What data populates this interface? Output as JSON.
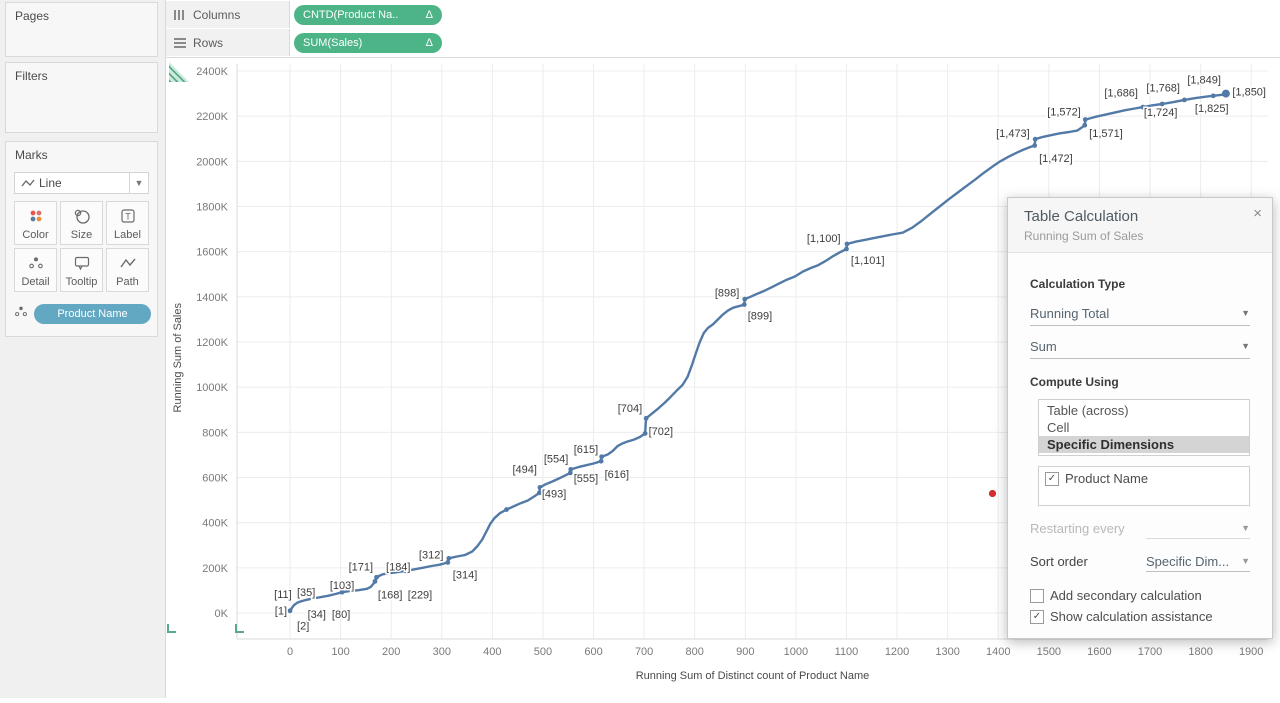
{
  "sidebar": {
    "pages_label": "Pages",
    "filters_label": "Filters",
    "marks_label": "Marks",
    "mark_type": "Line",
    "buttons": {
      "color": "Color",
      "size": "Size",
      "label": "Label",
      "detail": "Detail",
      "tooltip": "Tooltip",
      "path": "Path"
    },
    "detail_pill": "Product Name"
  },
  "shelves": {
    "columns_label": "Columns",
    "rows_label": "Rows",
    "columns_pill": "CNTD(Product Na..",
    "columns_pill_delta": "Δ",
    "rows_pill": "SUM(Sales)",
    "rows_pill_delta": "Δ"
  },
  "colors": {
    "pill_green": "#4db487",
    "pill_blue": "#62a8c2",
    "line": "#537aa6",
    "selection_bg": "#d4d4d4",
    "red_dot": "#d62f2f"
  },
  "chart_data": {
    "type": "line",
    "xlabel": "Running Sum of Distinct count of Product Name",
    "ylabel": "Running Sum of Sales",
    "xlim": [
      0,
      1900
    ],
    "ylim_thousands": [
      0,
      2400
    ],
    "grid": true,
    "x_ticks": [
      0,
      100,
      200,
      300,
      400,
      500,
      600,
      700,
      800,
      900,
      1000,
      1100,
      1200,
      1300,
      1400,
      1500,
      1600,
      1700,
      1800,
      1900
    ],
    "y_tick_values": [
      0,
      200,
      400,
      600,
      800,
      1000,
      1200,
      1400,
      1600,
      1800,
      2000,
      2200,
      2400
    ],
    "y_tick_labels": [
      "0K",
      "200K",
      "400K",
      "600K",
      "800K",
      "1000K",
      "1200K",
      "1400K",
      "1600K",
      "1800K",
      "2000K",
      "2200K",
      "2400K"
    ],
    "series_name": "Running Sum of Sales vs Running Sum of Distinct count of Product Name",
    "points": [
      [
        0,
        10
      ],
      [
        8,
        35
      ],
      [
        14,
        45
      ],
      [
        22,
        52
      ],
      [
        32,
        58
      ],
      [
        45,
        64
      ],
      [
        60,
        70
      ],
      [
        75,
        76
      ],
      [
        90,
        84
      ],
      [
        103,
        92
      ],
      [
        118,
        97
      ],
      [
        135,
        101
      ],
      [
        152,
        107
      ],
      [
        160,
        116
      ],
      [
        165,
        130
      ],
      [
        168,
        140
      ],
      [
        171,
        158
      ],
      [
        178,
        166
      ],
      [
        184,
        172
      ],
      [
        200,
        177
      ],
      [
        215,
        182
      ],
      [
        229,
        187
      ],
      [
        245,
        193
      ],
      [
        262,
        200
      ],
      [
        280,
        208
      ],
      [
        296,
        214
      ],
      [
        312,
        224
      ],
      [
        314,
        242
      ],
      [
        330,
        250
      ],
      [
        346,
        257
      ],
      [
        360,
        272
      ],
      [
        370,
        295
      ],
      [
        380,
        325
      ],
      [
        388,
        360
      ],
      [
        396,
        395
      ],
      [
        404,
        420
      ],
      [
        415,
        442
      ],
      [
        428,
        458
      ],
      [
        442,
        472
      ],
      [
        456,
        486
      ],
      [
        470,
        498
      ],
      [
        484,
        518
      ],
      [
        493,
        532
      ],
      [
        494,
        556
      ],
      [
        505,
        570
      ],
      [
        518,
        582
      ],
      [
        532,
        596
      ],
      [
        545,
        610
      ],
      [
        554,
        620
      ],
      [
        555,
        636
      ],
      [
        570,
        646
      ],
      [
        585,
        654
      ],
      [
        600,
        662
      ],
      [
        615,
        672
      ],
      [
        616,
        692
      ],
      [
        628,
        702
      ],
      [
        638,
        718
      ],
      [
        648,
        740
      ],
      [
        658,
        752
      ],
      [
        668,
        760
      ],
      [
        680,
        768
      ],
      [
        692,
        780
      ],
      [
        702,
        795
      ],
      [
        704,
        862
      ],
      [
        716,
        884
      ],
      [
        728,
        906
      ],
      [
        740,
        930
      ],
      [
        752,
        956
      ],
      [
        764,
        984
      ],
      [
        776,
        1010
      ],
      [
        786,
        1046
      ],
      [
        794,
        1095
      ],
      [
        802,
        1148
      ],
      [
        810,
        1200
      ],
      [
        818,
        1240
      ],
      [
        826,
        1262
      ],
      [
        836,
        1278
      ],
      [
        846,
        1300
      ],
      [
        856,
        1322
      ],
      [
        866,
        1340
      ],
      [
        876,
        1352
      ],
      [
        886,
        1358
      ],
      [
        893,
        1362
      ],
      [
        898,
        1366
      ],
      [
        899,
        1390
      ],
      [
        910,
        1400
      ],
      [
        922,
        1412
      ],
      [
        935,
        1424
      ],
      [
        950,
        1440
      ],
      [
        966,
        1458
      ],
      [
        982,
        1476
      ],
      [
        998,
        1490
      ],
      [
        1014,
        1512
      ],
      [
        1030,
        1528
      ],
      [
        1044,
        1540
      ],
      [
        1058,
        1558
      ],
      [
        1072,
        1578
      ],
      [
        1086,
        1596
      ],
      [
        1093,
        1604
      ],
      [
        1100,
        1612
      ],
      [
        1101,
        1634
      ],
      [
        1118,
        1644
      ],
      [
        1136,
        1652
      ],
      [
        1154,
        1660
      ],
      [
        1172,
        1668
      ],
      [
        1190,
        1676
      ],
      [
        1211,
        1684
      ],
      [
        1230,
        1706
      ],
      [
        1248,
        1736
      ],
      [
        1266,
        1768
      ],
      [
        1284,
        1800
      ],
      [
        1302,
        1832
      ],
      [
        1320,
        1862
      ],
      [
        1338,
        1892
      ],
      [
        1356,
        1922
      ],
      [
        1372,
        1950
      ],
      [
        1388,
        1976
      ],
      [
        1404,
        2000
      ],
      [
        1420,
        2020
      ],
      [
        1436,
        2038
      ],
      [
        1450,
        2052
      ],
      [
        1462,
        2062
      ],
      [
        1472,
        2070
      ],
      [
        1473,
        2098
      ],
      [
        1488,
        2108
      ],
      [
        1505,
        2116
      ],
      [
        1522,
        2124
      ],
      [
        1540,
        2130
      ],
      [
        1556,
        2136
      ],
      [
        1564,
        2148
      ],
      [
        1571,
        2160
      ],
      [
        1572,
        2185
      ],
      [
        1590,
        2196
      ],
      [
        1610,
        2206
      ],
      [
        1630,
        2216
      ],
      [
        1650,
        2226
      ],
      [
        1670,
        2234
      ],
      [
        1686,
        2240
      ],
      [
        1705,
        2248
      ],
      [
        1724,
        2254
      ],
      [
        1745,
        2262
      ],
      [
        1768,
        2272
      ],
      [
        1790,
        2280
      ],
      [
        1810,
        2286
      ],
      [
        1825,
        2290
      ],
      [
        1840,
        2294
      ],
      [
        1849,
        2296
      ],
      [
        1850,
        2300
      ]
    ],
    "marker_points": [
      [
        0,
        10
      ],
      [
        103,
        92
      ],
      [
        168,
        140
      ],
      [
        171,
        158
      ],
      [
        229,
        187
      ],
      [
        312,
        224
      ],
      [
        314,
        242
      ],
      [
        428,
        458
      ],
      [
        493,
        532
      ],
      [
        494,
        556
      ],
      [
        554,
        620
      ],
      [
        555,
        636
      ],
      [
        615,
        672
      ],
      [
        616,
        692
      ],
      [
        702,
        795
      ],
      [
        704,
        862
      ],
      [
        898,
        1366
      ],
      [
        899,
        1390
      ],
      [
        1100,
        1612
      ],
      [
        1101,
        1634
      ],
      [
        1472,
        2070
      ],
      [
        1473,
        2098
      ],
      [
        1571,
        2160
      ],
      [
        1572,
        2185
      ],
      [
        1686,
        2240
      ],
      [
        1724,
        2254
      ],
      [
        1768,
        2272
      ],
      [
        1825,
        2290
      ],
      [
        1849,
        2296
      ]
    ],
    "end_point": [
      1850,
      2300
    ],
    "point_labels": [
      {
        "text": "[1]",
        "x": -18,
        "y": 10
      },
      {
        "text": "[2]",
        "x": 26,
        "y": -55
      },
      {
        "text": "[11]",
        "x": -14,
        "y": 85
      },
      {
        "text": "[35]",
        "x": 32,
        "y": 94
      },
      {
        "text": "[34]",
        "x": 53,
        "y": -5
      },
      {
        "text": "[80]",
        "x": 101,
        "y": -5
      },
      {
        "text": "[103]",
        "x": 103,
        "y": 125
      },
      {
        "text": "[171]",
        "x": 140,
        "y": 205
      },
      {
        "text": "[168]",
        "x": 198,
        "y": 82
      },
      {
        "text": "[184]",
        "x": 214,
        "y": 205
      },
      {
        "text": "[229]",
        "x": 257,
        "y": 82
      },
      {
        "text": "[312]",
        "x": 279,
        "y": 260
      },
      {
        "text": "[314]",
        "x": 346,
        "y": 170
      },
      {
        "text": "[494]",
        "x": 464,
        "y": 638
      },
      {
        "text": "[493]",
        "x": 522,
        "y": 530
      },
      {
        "text": "[554]",
        "x": 526,
        "y": 685
      },
      {
        "text": "[555]",
        "x": 585,
        "y": 597
      },
      {
        "text": "[615]",
        "x": 585,
        "y": 726
      },
      {
        "text": "[616]",
        "x": 646,
        "y": 615
      },
      {
        "text": "[704]",
        "x": 672,
        "y": 908
      },
      {
        "text": "[702]",
        "x": 733,
        "y": 805
      },
      {
        "text": "[898]",
        "x": 864,
        "y": 1420
      },
      {
        "text": "[899]",
        "x": 929,
        "y": 1318
      },
      {
        "text": "[1,100]",
        "x": 1055,
        "y": 1660
      },
      {
        "text": "[1,101]",
        "x": 1142,
        "y": 1562
      },
      {
        "text": "[1,473]",
        "x": 1429,
        "y": 2126
      },
      {
        "text": "[1,472]",
        "x": 1514,
        "y": 2015
      },
      {
        "text": "[1,572]",
        "x": 1530,
        "y": 2220
      },
      {
        "text": "[1,571]",
        "x": 1613,
        "y": 2126
      },
      {
        "text": "[1,686]",
        "x": 1643,
        "y": 2304
      },
      {
        "text": "[1,724]",
        "x": 1721,
        "y": 2218
      },
      {
        "text": "[1,768]",
        "x": 1726,
        "y": 2326
      },
      {
        "text": "[1,825]",
        "x": 1822,
        "y": 2237
      },
      {
        "text": "[1,849]",
        "x": 1807,
        "y": 2362
      },
      {
        "text": "[1,850]",
        "x": 1896,
        "y": 2309
      }
    ]
  },
  "dialog": {
    "title": "Table Calculation",
    "subtitle": "Running Sum of Sales",
    "close": "×",
    "calculation_type_label": "Calculation Type",
    "calc_type_value": "Running Total",
    "aggregation_value": "Sum",
    "compute_using_label": "Compute Using",
    "options": [
      "Table (across)",
      "Cell",
      "Specific Dimensions"
    ],
    "selected_option": "Specific Dimensions",
    "dimension_checkbox_label": "Product Name",
    "dimension_checked": "✓",
    "restarting_label": "Restarting every",
    "sort_order_label": "Sort order",
    "sort_order_value": "Specific Dim...",
    "secondary_calc_label": "Add secondary calculation",
    "assistance_label": "Show calculation assistance",
    "assistance_checked": "✓"
  }
}
